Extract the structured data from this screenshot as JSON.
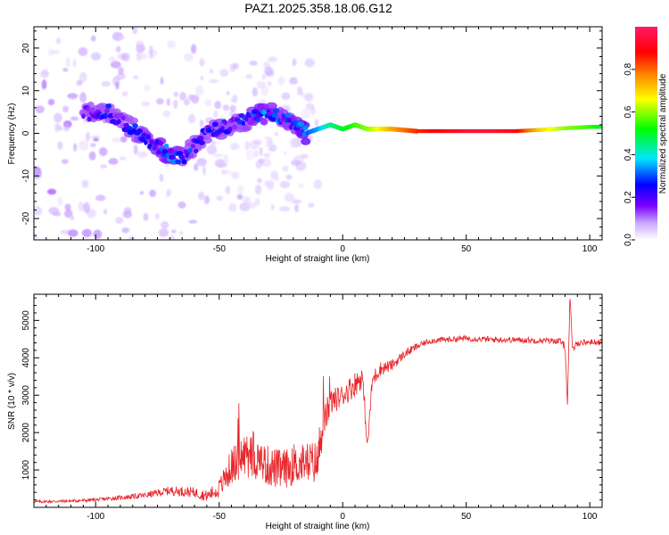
{
  "title": "PAZ1.2025.358.18.06.G12",
  "chart_data": [
    {
      "type": "heatmap",
      "title": "PAZ1.2025.358.18.06.G12",
      "xlabel": "Height of straight line (km)",
      "ylabel": "Frequency (Hz)",
      "xlim": [
        -125,
        105
      ],
      "ylim": [
        -25,
        25
      ],
      "x_ticks": [
        -100,
        -50,
        0,
        50,
        100
      ],
      "y_ticks": [
        -20,
        -10,
        0,
        10,
        20
      ],
      "colorbar": {
        "label": "Normalized spectral amplitude",
        "range": [
          0,
          1
        ],
        "ticks": [
          "0.0",
          "0.2",
          "0.4",
          "0.6",
          "0.8"
        ],
        "colors": [
          "#ffffff",
          "#b388ff",
          "#7a00ff",
          "#0000ff",
          "#00e5ff",
          "#00ff00",
          "#ffff00",
          "#ff8000",
          "#ff0000",
          "#ff1a66"
        ]
      },
      "ridge": {
        "x": [
          -125,
          -110,
          -100,
          -95,
          -90,
          -85,
          -80,
          -75,
          -70,
          -65,
          -60,
          -55,
          -50,
          -45,
          -40,
          -35,
          -30,
          -25,
          -20,
          -15,
          -10,
          -5,
          0,
          5,
          10,
          20,
          30,
          40,
          50,
          60,
          70,
          80,
          90,
          100,
          105
        ],
        "frequency": [
          2,
          4,
          5,
          5,
          3,
          1,
          -1,
          -3,
          -5,
          -6,
          -3,
          0,
          1,
          2,
          3,
          4,
          5,
          4,
          2,
          0,
          1,
          2,
          1,
          2,
          1,
          1,
          0.5,
          0.5,
          0.5,
          0.5,
          0.5,
          0.8,
          1.2,
          1.5,
          1.5
        ],
        "amplitude": [
          0.05,
          0.1,
          0.15,
          0.2,
          0.2,
          0.2,
          0.22,
          0.25,
          0.25,
          0.22,
          0.2,
          0.2,
          0.22,
          0.2,
          0.2,
          0.25,
          0.25,
          0.22,
          0.22,
          0.3,
          0.35,
          0.45,
          0.5,
          0.55,
          0.6,
          0.75,
          0.85,
          0.9,
          0.95,
          0.95,
          0.9,
          0.7,
          0.6,
          0.55,
          0.5
        ]
      }
    },
    {
      "type": "line",
      "xlabel": "Height of straight line (km)",
      "ylabel": "SNR (10 * v/v)",
      "xlim": [
        -125,
        105
      ],
      "ylim": [
        0,
        5700
      ],
      "x_ticks": [
        -100,
        -50,
        0,
        50,
        100
      ],
      "y_ticks": [
        1000,
        2000,
        3000,
        4000,
        5000
      ],
      "color": "#e8252a",
      "series": [
        {
          "name": "SNR",
          "x": [
            -125,
            -110,
            -100,
            -90,
            -80,
            -70,
            -60,
            -55,
            -50,
            -45,
            -40,
            -35,
            -30,
            -25,
            -20,
            -15,
            -10,
            -8,
            -5,
            0,
            5,
            8,
            10,
            12,
            15,
            20,
            25,
            30,
            35,
            40,
            50,
            60,
            70,
            80,
            88,
            90,
            91,
            92,
            93,
            95,
            100,
            105
          ],
          "y": [
            150,
            170,
            200,
            260,
            320,
            450,
            400,
            300,
            500,
            1100,
            1400,
            1300,
            1100,
            1000,
            1100,
            1200,
            1200,
            2200,
            2800,
            3000,
            3300,
            3500,
            1600,
            3400,
            3700,
            3800,
            4100,
            4300,
            4450,
            4480,
            4520,
            4490,
            4480,
            4460,
            4450,
            4300,
            2800,
            5700,
            4200,
            4400,
            4420,
            4430
          ],
          "noise": [
            40,
            40,
            50,
            60,
            80,
            120,
            140,
            150,
            250,
            500,
            600,
            600,
            550,
            550,
            500,
            550,
            600,
            500,
            350,
            300,
            350,
            300,
            200,
            250,
            200,
            150,
            120,
            100,
            80,
            80,
            80,
            80,
            80,
            80,
            80,
            100,
            100,
            100,
            100,
            90,
            80,
            80
          ]
        }
      ]
    }
  ]
}
